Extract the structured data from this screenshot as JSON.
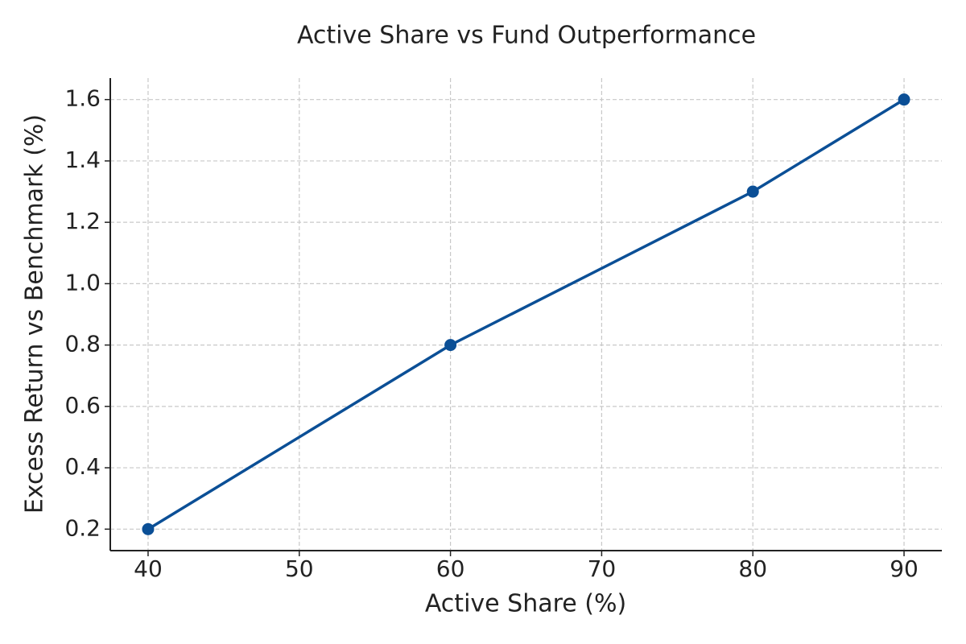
{
  "chart_data": {
    "type": "line",
    "title": "Active Share vs Fund Outperformance",
    "x_label": "Active Share (%)",
    "y_label": "Excess Return vs Benchmark (%)",
    "x": [
      40,
      60,
      80,
      90
    ],
    "series": [
      {
        "color": "#0b4f96",
        "values": [
          0.2,
          0.8,
          1.3,
          1.6
        ]
      }
    ],
    "xlim": [
      37.5,
      92.5
    ],
    "ylim": [
      0.13,
      1.67
    ],
    "xticks": [
      40,
      50,
      60,
      70,
      80,
      90
    ],
    "yticks": [
      0.2,
      0.4,
      0.6,
      0.8,
      {
        "value": 1.0,
        "label": "1.0"
      },
      1.2,
      1.4,
      1.6
    ],
    "grid": true
  }
}
